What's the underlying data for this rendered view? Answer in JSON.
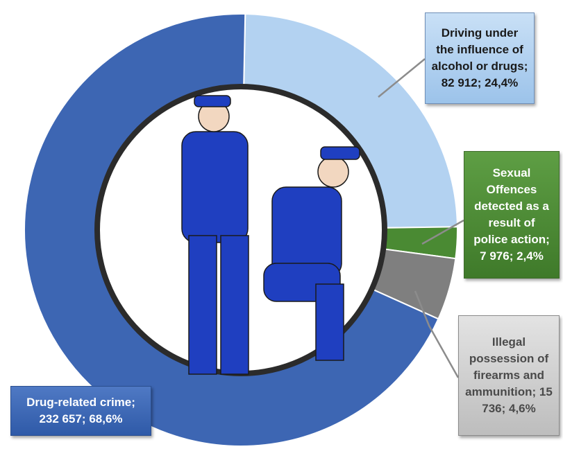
{
  "chart_data": {
    "type": "donut",
    "categories": [
      "Drug-related crime",
      "Driving under the influence of alcohol or drugs",
      "Sexual Offences detected as a result of police action",
      "Illegal possession of firearms and ammunition"
    ],
    "values": [
      232657,
      82912,
      7976,
      15736
    ],
    "value_labels": [
      "232 657",
      "82 912",
      "7 976",
      "15 736"
    ],
    "percents": [
      68.6,
      24.4,
      2.4,
      4.6
    ],
    "percent_labels": [
      "68,6%",
      "24,4%",
      "2,4%",
      "4,6%"
    ],
    "separator": "; ",
    "colors": [
      "#3d66b3",
      "#b3d2f1",
      "#4a8a33",
      "#7f7f7f"
    ]
  }
}
